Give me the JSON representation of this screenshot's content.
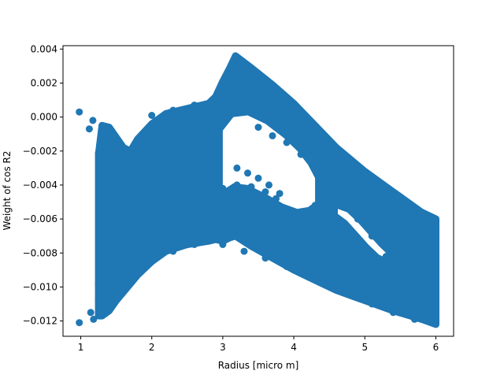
{
  "chart_data": {
    "type": "scatter",
    "title": "",
    "xlabel": "Radius [micro m]",
    "ylabel": "Weight of  cos  R2",
    "xlim": [
      0.75,
      6.25
    ],
    "ylim": [
      -0.0129,
      0.0042
    ],
    "xticks": [
      1,
      2,
      3,
      4,
      5,
      6
    ],
    "yticks": [
      -0.012,
      -0.01,
      -0.008,
      -0.006,
      -0.004,
      -0.002,
      0.0,
      0.002,
      0.004
    ],
    "xtick_labels": [
      "1",
      "2",
      "3",
      "4",
      "5",
      "6"
    ],
    "ytick_labels": [
      "−0.012",
      "−0.010",
      "−0.008",
      "−0.006",
      "−0.004",
      "−0.002",
      "0.000",
      "0.002",
      "0.004"
    ],
    "grid": false,
    "marker_color": "#1f77b4",
    "series": [
      {
        "name": "",
        "points": [
          [
            0.98,
            0.0003
          ],
          [
            1.12,
            -0.0007
          ],
          [
            1.17,
            -0.0002
          ],
          [
            0.98,
            -0.0121
          ],
          [
            1.14,
            -0.0115
          ],
          [
            1.18,
            -0.0119
          ],
          [
            1.25,
            -0.0021
          ],
          [
            1.27,
            -0.0031
          ],
          [
            1.28,
            -0.0043
          ],
          [
            1.29,
            -0.0054
          ],
          [
            1.3,
            -0.0066
          ],
          [
            1.28,
            -0.0078
          ],
          [
            1.26,
            -0.0088
          ],
          [
            1.25,
            -0.0098
          ],
          [
            1.25,
            -0.0107
          ],
          [
            1.27,
            -0.0112
          ],
          [
            1.3,
            -0.0005
          ],
          [
            1.34,
            -0.0009
          ],
          [
            1.38,
            -0.0013
          ],
          [
            1.42,
            -0.0018
          ],
          [
            1.46,
            -0.0024
          ],
          [
            1.49,
            -0.003
          ],
          [
            1.52,
            -0.0036
          ],
          [
            1.54,
            -0.0042
          ],
          [
            1.57,
            -0.0048
          ],
          [
            1.6,
            -0.0054
          ],
          [
            1.62,
            -0.0058
          ],
          [
            1.55,
            -0.0075
          ],
          [
            1.5,
            -0.0085
          ],
          [
            1.45,
            -0.0093
          ],
          [
            1.42,
            -0.0101
          ],
          [
            1.38,
            -0.0107
          ],
          [
            1.35,
            -0.0113
          ],
          [
            1.8,
            -0.0014
          ],
          [
            2.0,
            0.0001
          ],
          [
            2.3,
            0.0004
          ],
          [
            2.6,
            0.0007
          ],
          [
            2.9,
            0.0011
          ],
          [
            2.0,
            -0.0084
          ],
          [
            2.3,
            -0.0079
          ],
          [
            2.6,
            -0.0075
          ],
          [
            2.85,
            -0.007
          ],
          [
            1.7,
            -0.0045
          ],
          [
            2.1,
            -0.0042
          ],
          [
            2.5,
            -0.0036
          ],
          [
            1.9,
            -0.0062
          ],
          [
            2.4,
            -0.0058
          ],
          [
            2.9,
            -0.0022
          ],
          [
            2.95,
            -0.0005
          ],
          [
            3.0,
            0.0012
          ],
          [
            3.1,
            0.0024
          ],
          [
            3.17,
            0.0035
          ],
          [
            3.3,
            0.0028
          ],
          [
            3.5,
            0.0018
          ],
          [
            3.7,
            0.0008
          ],
          [
            3.9,
            -0.0002
          ],
          [
            4.1,
            -0.0013
          ],
          [
            4.3,
            -0.0022
          ],
          [
            4.5,
            -0.0031
          ],
          [
            4.7,
            -0.0039
          ],
          [
            4.9,
            -0.0047
          ],
          [
            5.1,
            -0.0052
          ],
          [
            5.3,
            -0.0055
          ],
          [
            5.5,
            -0.0057
          ],
          [
            5.7,
            -0.0058
          ],
          [
            5.9,
            -0.006
          ],
          [
            6.0,
            -0.0061
          ],
          [
            6.0,
            -0.0064
          ],
          [
            6.0,
            -0.0068
          ],
          [
            6.0,
            -0.0072
          ],
          [
            6.0,
            -0.0076
          ],
          [
            6.0,
            -0.008
          ],
          [
            6.0,
            -0.0085
          ],
          [
            6.0,
            -0.0093
          ],
          [
            6.0,
            -0.0098
          ],
          [
            6.0,
            -0.0103
          ],
          [
            6.0,
            -0.0108
          ],
          [
            6.0,
            -0.0112
          ],
          [
            6.0,
            -0.0117
          ],
          [
            6.0,
            -0.0121
          ],
          [
            3.13,
            0.0006
          ],
          [
            3.25,
            0.0011
          ],
          [
            3.4,
            0.0011
          ],
          [
            3.6,
            0.0006
          ],
          [
            3.8,
            0.0002
          ],
          [
            2.9,
            -0.0005
          ],
          [
            3.05,
            0.0
          ],
          [
            3.3,
            0.0005
          ],
          [
            3.5,
            0.0004
          ],
          [
            3.7,
            0.0002
          ],
          [
            3.8,
            0.0
          ],
          [
            3.2,
            -0.003
          ],
          [
            3.35,
            -0.0033
          ],
          [
            3.5,
            -0.0036
          ],
          [
            3.65,
            -0.004
          ],
          [
            3.8,
            -0.0045
          ],
          [
            3.0,
            -0.0042
          ],
          [
            3.2,
            -0.004
          ],
          [
            3.4,
            -0.0041
          ],
          [
            3.6,
            -0.0044
          ],
          [
            3.75,
            -0.0048
          ],
          [
            3.0,
            -0.0053
          ],
          [
            3.3,
            -0.0055
          ],
          [
            3.6,
            -0.0058
          ],
          [
            3.9,
            -0.0061
          ],
          [
            4.2,
            -0.0063
          ],
          [
            3.0,
            -0.0075
          ],
          [
            3.3,
            -0.0079
          ],
          [
            3.6,
            -0.0083
          ],
          [
            3.9,
            -0.0088
          ],
          [
            4.2,
            -0.0094
          ],
          [
            4.5,
            -0.0099
          ],
          [
            4.8,
            -0.0105
          ],
          [
            5.1,
            -0.011
          ],
          [
            5.4,
            -0.0115
          ],
          [
            5.7,
            -0.0119
          ],
          [
            4.3,
            -0.0052
          ],
          [
            4.5,
            -0.005
          ],
          [
            4.7,
            -0.0053
          ],
          [
            4.9,
            -0.006
          ],
          [
            5.1,
            -0.007
          ],
          [
            5.3,
            -0.0082
          ],
          [
            5.5,
            -0.0092
          ],
          [
            5.7,
            -0.0097
          ],
          [
            5.85,
            -0.01
          ],
          [
            4.4,
            -0.0058
          ],
          [
            4.6,
            -0.0062
          ],
          [
            4.8,
            -0.0072
          ],
          [
            5.0,
            -0.0085
          ],
          [
            5.2,
            -0.0094
          ],
          [
            5.4,
            -0.01
          ],
          [
            5.6,
            -0.0104
          ],
          [
            5.85,
            -0.0106
          ],
          [
            4.2,
            -0.002
          ],
          [
            4.4,
            -0.003
          ],
          [
            4.6,
            -0.0037
          ],
          [
            4.8,
            -0.0045
          ],
          [
            5.0,
            -0.0055
          ],
          [
            5.2,
            -0.006
          ],
          [
            5.4,
            -0.0062
          ],
          [
            5.6,
            -0.0066
          ],
          [
            5.8,
            -0.0075
          ],
          [
            5.9,
            -0.0082
          ],
          [
            5.2,
            -0.0068
          ],
          [
            5.4,
            -0.0076
          ],
          [
            5.6,
            -0.0081
          ],
          [
            5.8,
            -0.0086
          ],
          [
            3.5,
            -0.0006
          ],
          [
            3.7,
            -0.0011
          ],
          [
            3.9,
            -0.0015
          ],
          [
            4.1,
            -0.0022
          ],
          [
            4.3,
            -0.0028
          ],
          [
            4.5,
            -0.0033
          ],
          [
            4.7,
            -0.0036
          ],
          [
            4.9,
            -0.0038
          ],
          [
            5.1,
            -0.0044
          ],
          [
            5.3,
            -0.0049
          ],
          [
            5.5,
            -0.0051
          ],
          [
            5.7,
            -0.0054
          ],
          [
            5.9,
            -0.0058
          ]
        ]
      }
    ],
    "cloud_regions": [
      {
        "x": [
          1.25,
          1.3,
          1.4,
          1.5,
          1.6,
          1.7,
          1.8,
          2.0,
          2.2,
          2.5,
          2.8,
          2.9,
          3.0,
          3.1,
          3.18,
          3.4,
          3.7,
          4.0,
          4.3,
          4.6,
          5.0,
          5.4,
          5.8,
          6.0
        ],
        "ymin": [
          -0.0117,
          -0.0117,
          -0.0114,
          -0.0108,
          -0.0103,
          -0.0098,
          -0.0093,
          -0.0085,
          -0.0079,
          -0.0075,
          -0.0073,
          -0.0072,
          -0.0073,
          -0.0071,
          -0.007,
          -0.0076,
          -0.0083,
          -0.009,
          -0.0096,
          -0.0102,
          -0.0108,
          -0.0114,
          -0.0119,
          -0.0122
        ],
        "ymax": [
          -0.0022,
          -0.0005,
          -0.0006,
          -0.0012,
          -0.0018,
          -0.002,
          -0.0013,
          -0.0004,
          0.0002,
          0.0005,
          0.0008,
          0.0012,
          0.0021,
          0.0029,
          0.0036,
          0.0029,
          0.0019,
          0.0008,
          -0.0005,
          -0.0018,
          -0.0032,
          -0.0044,
          -0.0056,
          -0.006
        ]
      }
    ],
    "cloud_holes": [
      {
        "x": [
          3.0,
          3.15,
          3.35,
          3.6,
          3.85,
          4.05,
          4.2,
          4.3
        ],
        "ymin": [
          -0.0043,
          -0.0039,
          -0.004,
          -0.0045,
          -0.0051,
          -0.0054,
          -0.0053,
          -0.005
        ],
        "ymax": [
          -0.0008,
          0.0,
          0.0001,
          -0.0004,
          -0.0012,
          -0.002,
          -0.0028,
          -0.0036
        ]
      },
      {
        "x": [
          4.62,
          4.75,
          4.9,
          5.05,
          5.2,
          5.3
        ],
        "ymin": [
          -0.0057,
          -0.0061,
          -0.0068,
          -0.0075,
          -0.0081,
          -0.0083
        ],
        "ymax": [
          -0.0054,
          -0.0056,
          -0.0062,
          -0.0069,
          -0.0076,
          -0.008
        ]
      }
    ]
  }
}
